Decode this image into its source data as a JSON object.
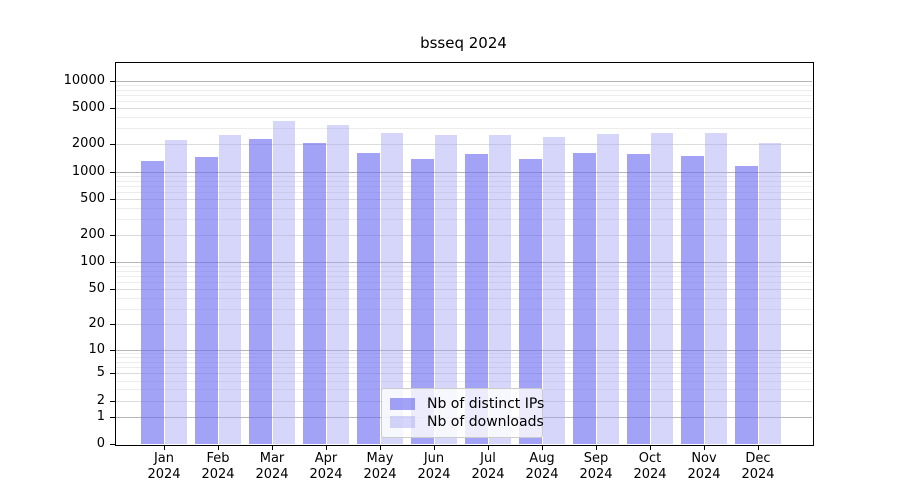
{
  "title": "bsseq 2024",
  "chart_data": {
    "type": "bar",
    "title": "bsseq 2024",
    "x": [
      "Jan 2024",
      "Feb 2024",
      "Mar 2024",
      "Apr 2024",
      "May 2024",
      "Jun 2024",
      "Jul 2024",
      "Aug 2024",
      "Sep 2024",
      "Oct 2024",
      "Nov 2024",
      "Dec 2024"
    ],
    "x_tick_month": [
      "Jan",
      "Feb",
      "Mar",
      "Apr",
      "May",
      "Jun",
      "Jul",
      "Aug",
      "Sep",
      "Oct",
      "Nov",
      "Dec"
    ],
    "x_tick_year": "2024",
    "series": [
      {
        "name": "Nb of distinct IPs",
        "color": "rgba(105,105,240,0.62)",
        "values": [
          1300,
          1450,
          2300,
          2100,
          1600,
          1400,
          1550,
          1400,
          1600,
          1550,
          1500,
          1150
        ]
      },
      {
        "name": "Nb of downloads",
        "color": "rgba(165,165,245,0.45)",
        "values": [
          2250,
          2550,
          3600,
          3300,
          2650,
          2550,
          2550,
          2400,
          2600,
          2650,
          2700,
          2050
        ]
      }
    ],
    "yscale": "log1p",
    "ylim": [
      0,
      16000
    ],
    "ytick_labels": [
      0,
      1,
      2,
      5,
      10,
      20,
      50,
      100,
      200,
      500,
      1000,
      2000,
      5000,
      10000
    ],
    "grid": true,
    "legend_position": "bottom-center",
    "colors": {
      "major_grid": "#b6b6b6",
      "labeled_grid": "#dcdcdc",
      "minor_grid": "#ececec",
      "spine": "#000000",
      "background": "#ffffff"
    }
  },
  "legend": {
    "entries": [
      "Nb of distinct IPs",
      "Nb of downloads"
    ]
  }
}
